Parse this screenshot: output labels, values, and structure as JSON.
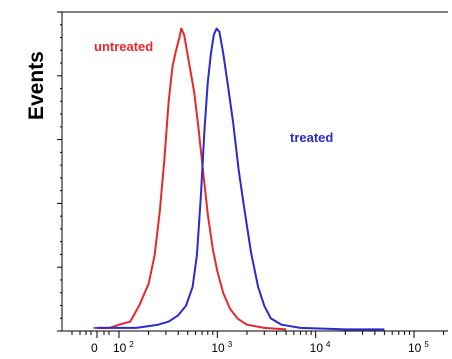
{
  "chart_data": {
    "type": "line",
    "ylabel": "Events",
    "xlabel": "",
    "x_scale": "log",
    "xlim": [
      50,
      500000
    ],
    "ylim": [
      0,
      100
    ],
    "x_ticks": [
      {
        "value": 1,
        "base": "0",
        "exp": ""
      },
      {
        "value": 100,
        "base": "10",
        "exp": "2"
      },
      {
        "value": 1000,
        "base": "10",
        "exp": "3"
      },
      {
        "value": 10000,
        "base": "10",
        "exp": "4"
      },
      {
        "value": 100000,
        "base": "10",
        "exp": "5"
      }
    ],
    "series": [
      {
        "name": "untreated",
        "color": "#e8282c",
        "points": [
          [
            55,
            1
          ],
          [
            80,
            1
          ],
          [
            100,
            2
          ],
          [
            130,
            3
          ],
          [
            160,
            8
          ],
          [
            200,
            15
          ],
          [
            230,
            24
          ],
          [
            260,
            38
          ],
          [
            290,
            55
          ],
          [
            320,
            73
          ],
          [
            350,
            84
          ],
          [
            380,
            89
          ],
          [
            410,
            93
          ],
          [
            430,
            96
          ],
          [
            460,
            94
          ],
          [
            490,
            89
          ],
          [
            530,
            83
          ],
          [
            580,
            76
          ],
          [
            640,
            65
          ],
          [
            720,
            50
          ],
          [
            800,
            37
          ],
          [
            900,
            26
          ],
          [
            1000,
            19
          ],
          [
            1150,
            12
          ],
          [
            1350,
            7
          ],
          [
            1600,
            4
          ],
          [
            2000,
            2
          ],
          [
            3000,
            1
          ],
          [
            5000,
            0.5
          ]
        ]
      },
      {
        "name": "treated",
        "color": "#2a2ad0",
        "points": [
          [
            60,
            1
          ],
          [
            150,
            1
          ],
          [
            250,
            2
          ],
          [
            320,
            3
          ],
          [
            400,
            5
          ],
          [
            480,
            8
          ],
          [
            560,
            14
          ],
          [
            620,
            24
          ],
          [
            680,
            43
          ],
          [
            740,
            64
          ],
          [
            800,
            79
          ],
          [
            860,
            88
          ],
          [
            920,
            94
          ],
          [
            980,
            96
          ],
          [
            1050,
            95
          ],
          [
            1150,
            88
          ],
          [
            1280,
            78
          ],
          [
            1450,
            66
          ],
          [
            1650,
            51
          ],
          [
            1900,
            38
          ],
          [
            2200,
            25
          ],
          [
            2600,
            14
          ],
          [
            3000,
            8
          ],
          [
            3500,
            4
          ],
          [
            4500,
            2
          ],
          [
            7000,
            1
          ],
          [
            20000,
            0.5
          ],
          [
            50000,
            0.5
          ]
        ]
      }
    ]
  }
}
